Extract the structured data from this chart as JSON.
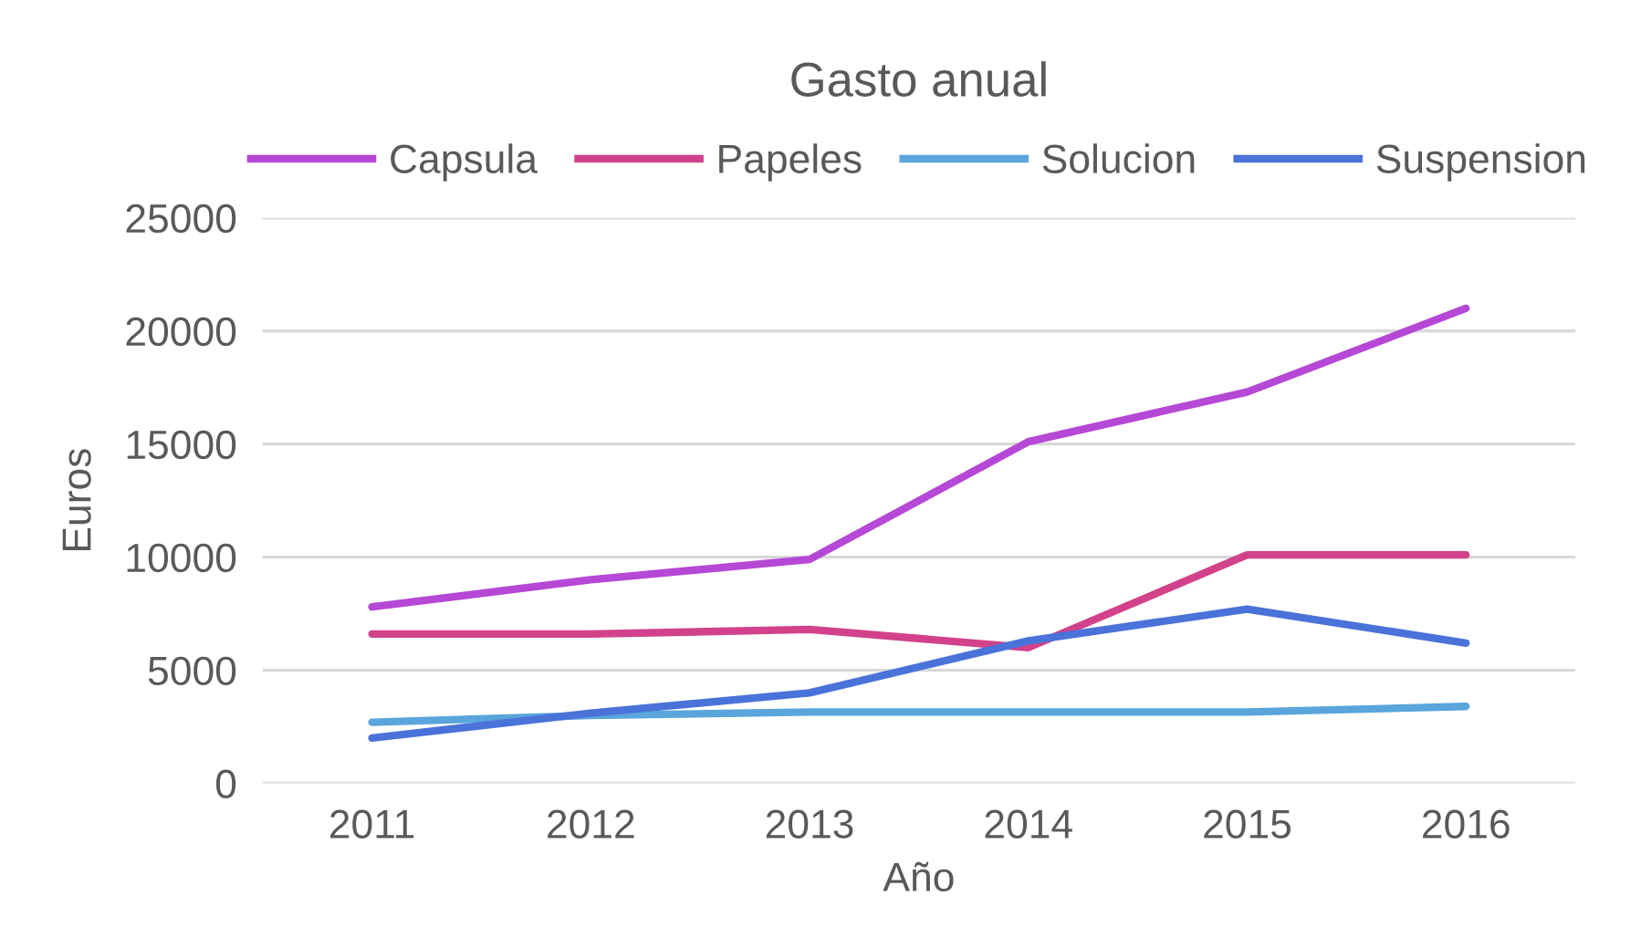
{
  "chart_data": {
    "type": "line",
    "title": "Gasto anual",
    "xlabel": "Año",
    "ylabel": "Euros",
    "categories": [
      "2011",
      "2012",
      "2013",
      "2014",
      "2015",
      "2016"
    ],
    "series": [
      {
        "name": "Capsula",
        "color": "#b648d6",
        "values": [
          7800,
          9000,
          9900,
          15100,
          17300,
          21000
        ]
      },
      {
        "name": "Papeles",
        "color": "#d2428a",
        "values": [
          6600,
          6600,
          6800,
          6000,
          10100,
          10100
        ]
      },
      {
        "name": "Solucion",
        "color": "#5aa5dc",
        "values": [
          2700,
          3000,
          3150,
          3150,
          3150,
          3400
        ]
      },
      {
        "name": "Suspension",
        "color": "#4a73d9",
        "values": [
          2000,
          3100,
          4000,
          6300,
          7700,
          6200
        ]
      }
    ],
    "ylim": [
      0,
      25000
    ],
    "yticks": [
      0,
      5000,
      10000,
      15000,
      20000,
      25000
    ],
    "grid": "y",
    "legend": "top",
    "marker": "none",
    "line_style": "solid"
  }
}
